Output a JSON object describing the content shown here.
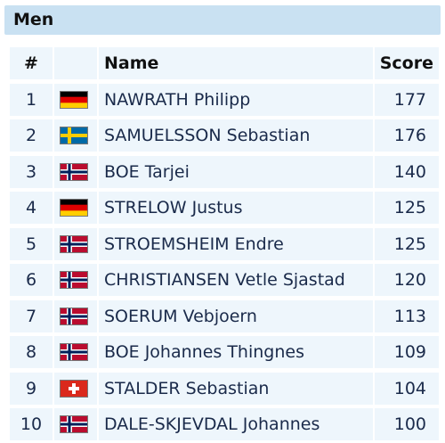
{
  "panel": {
    "title": "Men"
  },
  "table": {
    "headers": {
      "rank": "#",
      "name": "Name",
      "score": "Score"
    },
    "rows": [
      {
        "rank": "1",
        "flag": "germany-flag-icon",
        "name": "NAWRATH Philipp",
        "score": "177"
      },
      {
        "rank": "2",
        "flag": "sweden-flag-icon",
        "name": "SAMUELSSON Sebastian",
        "score": "176"
      },
      {
        "rank": "3",
        "flag": "norway-flag-icon",
        "name": "BOE Tarjei",
        "score": "140"
      },
      {
        "rank": "4",
        "flag": "germany-flag-icon",
        "name": "STRELOW Justus",
        "score": "125"
      },
      {
        "rank": "5",
        "flag": "norway-flag-icon",
        "name": "STROEMSHEIM Endre",
        "score": "125"
      },
      {
        "rank": "6",
        "flag": "norway-flag-icon",
        "name": "CHRISTIANSEN Vetle Sjastad",
        "score": "120"
      },
      {
        "rank": "7",
        "flag": "norway-flag-icon",
        "name": "SOERUM Vebjoern",
        "score": "113"
      },
      {
        "rank": "8",
        "flag": "norway-flag-icon",
        "name": "BOE Johannes Thingnes",
        "score": "109"
      },
      {
        "rank": "9",
        "flag": "switzerland-flag-icon",
        "name": "STALDER Sebastian",
        "score": "104"
      },
      {
        "rank": "10",
        "flag": "norway-flag-icon",
        "name": "DALE-SKJEVDAL Johannes",
        "score": "100"
      }
    ]
  },
  "colors": {
    "header_bg": "#c9e1f2",
    "cell_bg": "#eef6fc",
    "text": "#1a2a4a"
  }
}
